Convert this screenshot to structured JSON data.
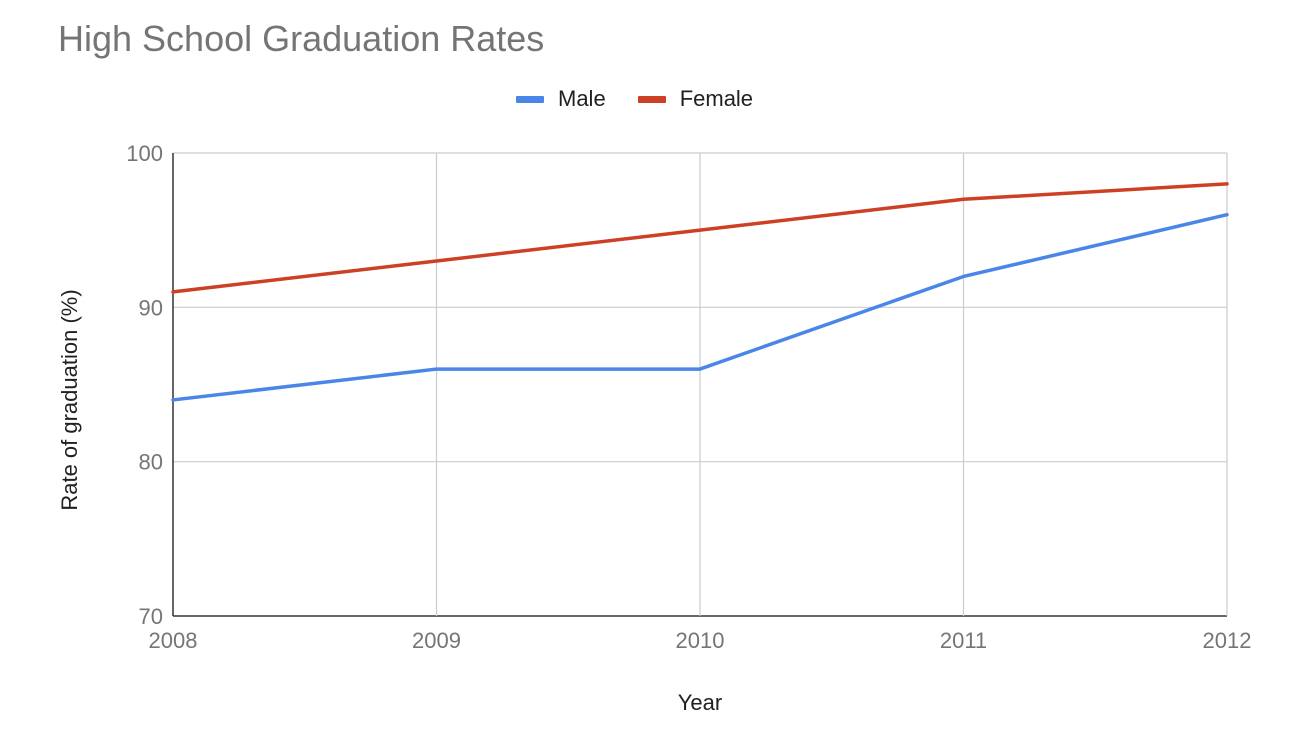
{
  "chart_data": {
    "type": "line",
    "title": "High School Graduation Rates",
    "xlabel": "Year",
    "ylabel": "Rate of graduation (%)",
    "categories": [
      "2008",
      "2009",
      "2010",
      "2011",
      "2012"
    ],
    "ylim": [
      70,
      100
    ],
    "yticks": [
      70,
      80,
      90,
      100
    ],
    "grid": true,
    "legend_position": "top",
    "series": [
      {
        "name": "Male",
        "color": "#4a86e8",
        "values": [
          84,
          86,
          86,
          92,
          96
        ]
      },
      {
        "name": "Female",
        "color": "#cc4125",
        "values": [
          91,
          93,
          95,
          97,
          98
        ]
      }
    ]
  }
}
